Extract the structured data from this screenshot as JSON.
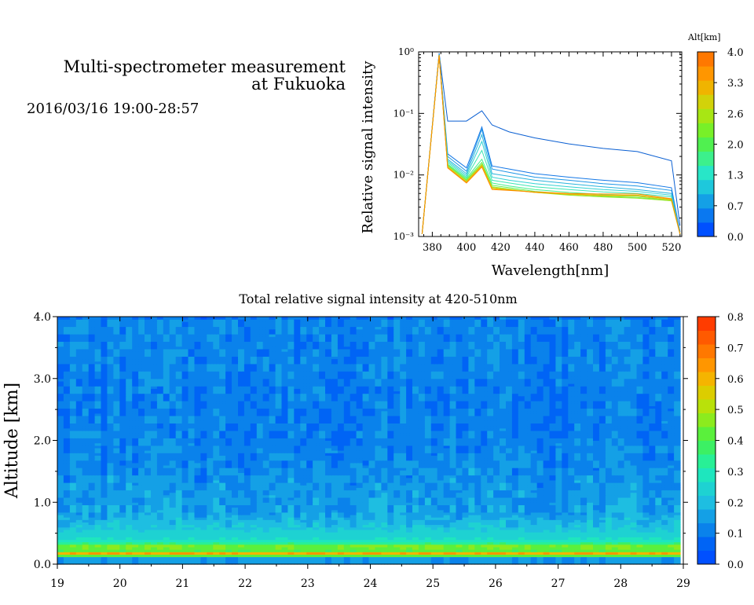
{
  "header": {
    "title_line1": "Multi-spectrometer measurement",
    "title_line2": "at Fukuoka",
    "subtitle": "2016/03/16 19:00-28:57"
  },
  "chart_data": [
    {
      "type": "line",
      "xlabel": "Wavelength[nm]",
      "ylabel": "Relative signal intensity",
      "xlim": [
        372,
        526
      ],
      "ylim": [
        0.001,
        1
      ],
      "yscale": "log",
      "xticks": [
        380,
        400,
        420,
        440,
        460,
        480,
        500,
        520
      ],
      "yticks": [
        {
          "value": 1,
          "label": "10⁰"
        },
        {
          "value": 0.1,
          "label": "10⁻¹"
        },
        {
          "value": 0.01,
          "label": "10⁻²"
        },
        {
          "value": 0.001,
          "label": "10⁻³"
        }
      ],
      "x": [
        374,
        384,
        389,
        400,
        409,
        415,
        425,
        440,
        460,
        480,
        500,
        520,
        525
      ],
      "colorbar": {
        "title": "Alt[km]",
        "ticks": [
          "4.0",
          "3.3",
          "2.6",
          "2.0",
          "1.3",
          "0.7",
          "0.0"
        ],
        "colors": [
          "#0050ff",
          "#0a78f0",
          "#14a0e6",
          "#1ec8dc",
          "#28e6c8",
          "#3cf08c",
          "#50f050",
          "#78f028",
          "#a8e614",
          "#d2d20a",
          "#f0b400",
          "#ff9600",
          "#ff7800"
        ]
      },
      "series": [
        {
          "color": "#0a5fd2",
          "values": [
            0.0011,
            0.95,
            0.075,
            0.075,
            0.11,
            0.065,
            0.05,
            0.04,
            0.032,
            0.027,
            0.024,
            0.017,
            0.0015
          ]
        },
        {
          "color": "#1478e6",
          "values": [
            0.0011,
            0.92,
            0.022,
            0.013,
            0.06,
            0.014,
            0.0125,
            0.0105,
            0.0092,
            0.0082,
            0.0075,
            0.0062,
            0.0012
          ]
        },
        {
          "color": "#1e96e6",
          "values": [
            0.0011,
            0.92,
            0.02,
            0.0115,
            0.055,
            0.0125,
            0.011,
            0.0092,
            0.0082,
            0.0072,
            0.0066,
            0.0056,
            0.0012
          ]
        },
        {
          "color": "#28b4dc",
          "values": [
            0.0011,
            0.9,
            0.018,
            0.0105,
            0.045,
            0.0105,
            0.0095,
            0.0082,
            0.0072,
            0.0064,
            0.0058,
            0.005,
            0.0011
          ]
        },
        {
          "color": "#32d2d2",
          "values": [
            0.0011,
            0.9,
            0.017,
            0.0098,
            0.035,
            0.0092,
            0.0082,
            0.0072,
            0.0064,
            0.0058,
            0.0054,
            0.0047,
            0.0011
          ]
        },
        {
          "color": "#3ce6b4",
          "values": [
            0.0011,
            0.88,
            0.016,
            0.0092,
            0.025,
            0.0082,
            0.0074,
            0.0064,
            0.0058,
            0.0053,
            0.005,
            0.0044,
            0.0011
          ]
        },
        {
          "color": "#46f08c",
          "values": [
            0.0011,
            0.88,
            0.015,
            0.0088,
            0.018,
            0.0074,
            0.0066,
            0.0058,
            0.0052,
            0.0048,
            0.0046,
            0.0041,
            0.0011
          ]
        },
        {
          "color": "#64f050",
          "values": [
            0.0011,
            0.88,
            0.0145,
            0.0084,
            0.016,
            0.0068,
            0.0062,
            0.0054,
            0.0049,
            0.0045,
            0.0043,
            0.0039,
            0.0011
          ]
        },
        {
          "color": "#96e628",
          "values": [
            0.0011,
            0.88,
            0.014,
            0.0081,
            0.015,
            0.0064,
            0.0059,
            0.0052,
            0.0047,
            0.0044,
            0.0042,
            0.0038,
            0.0011
          ]
        },
        {
          "color": "#c8d214",
          "values": [
            0.0011,
            0.88,
            0.0135,
            0.0078,
            0.0145,
            0.0062,
            0.0058,
            0.0052,
            0.0048,
            0.0046,
            0.0045,
            0.0039,
            0.0011
          ]
        },
        {
          "color": "#f0b400",
          "values": [
            0.0011,
            0.88,
            0.0132,
            0.0076,
            0.014,
            0.006,
            0.0057,
            0.0052,
            0.0049,
            0.0047,
            0.0047,
            0.004,
            0.0011
          ]
        },
        {
          "color": "#ff8c00",
          "values": [
            0.0011,
            0.88,
            0.013,
            0.0074,
            0.0135,
            0.0058,
            0.0056,
            0.0053,
            0.005,
            0.0049,
            0.0049,
            0.0041,
            0.0011
          ]
        }
      ]
    },
    {
      "type": "heatmap",
      "title": "Total relative signal intensity at 420-510nm",
      "ylabel": "Altitude [km]",
      "xlim": [
        19,
        29
      ],
      "ylim": [
        0,
        4
      ],
      "xticks": [
        "19",
        "20",
        "21",
        "22",
        "23",
        "24",
        "25",
        "26",
        "27",
        "28",
        "29"
      ],
      "yticks": [
        "0.0",
        "1.0",
        "2.0",
        "3.0",
        "4.0"
      ],
      "data_time_range": [
        19,
        28.95
      ],
      "profile": {
        "altitude": [
          0.0,
          0.12,
          0.16,
          0.19,
          0.23,
          0.28,
          0.33,
          0.4,
          0.5,
          0.65,
          0.8,
          1.0,
          1.5,
          2.0,
          2.5,
          3.0,
          3.5,
          3.97,
          4.0
        ],
        "value": [
          0.14,
          0.14,
          0.7,
          0.58,
          0.35,
          0.5,
          0.36,
          0.27,
          0.24,
          0.2,
          0.16,
          0.15,
          0.13,
          0.11,
          0.105,
          0.11,
          0.115,
          0.12,
          0.03
        ]
      },
      "colorbar": {
        "range": [
          0,
          0.8
        ],
        "ticks": [
          "0.0",
          "0.1",
          "0.2",
          "0.3",
          "0.4",
          "0.5",
          "0.6",
          "0.7",
          "0.8"
        ],
        "colors": [
          "#0050ff",
          "#0064f5",
          "#0a82eb",
          "#14a0e6",
          "#1ebee1",
          "#1ed2d2",
          "#1ee6be",
          "#28f096",
          "#3cf064",
          "#5af03c",
          "#8ceb1e",
          "#b9e10a",
          "#dccd00",
          "#f5b400",
          "#ff9600",
          "#ff7800",
          "#ff5a00",
          "#ff3c00"
        ]
      }
    }
  ]
}
